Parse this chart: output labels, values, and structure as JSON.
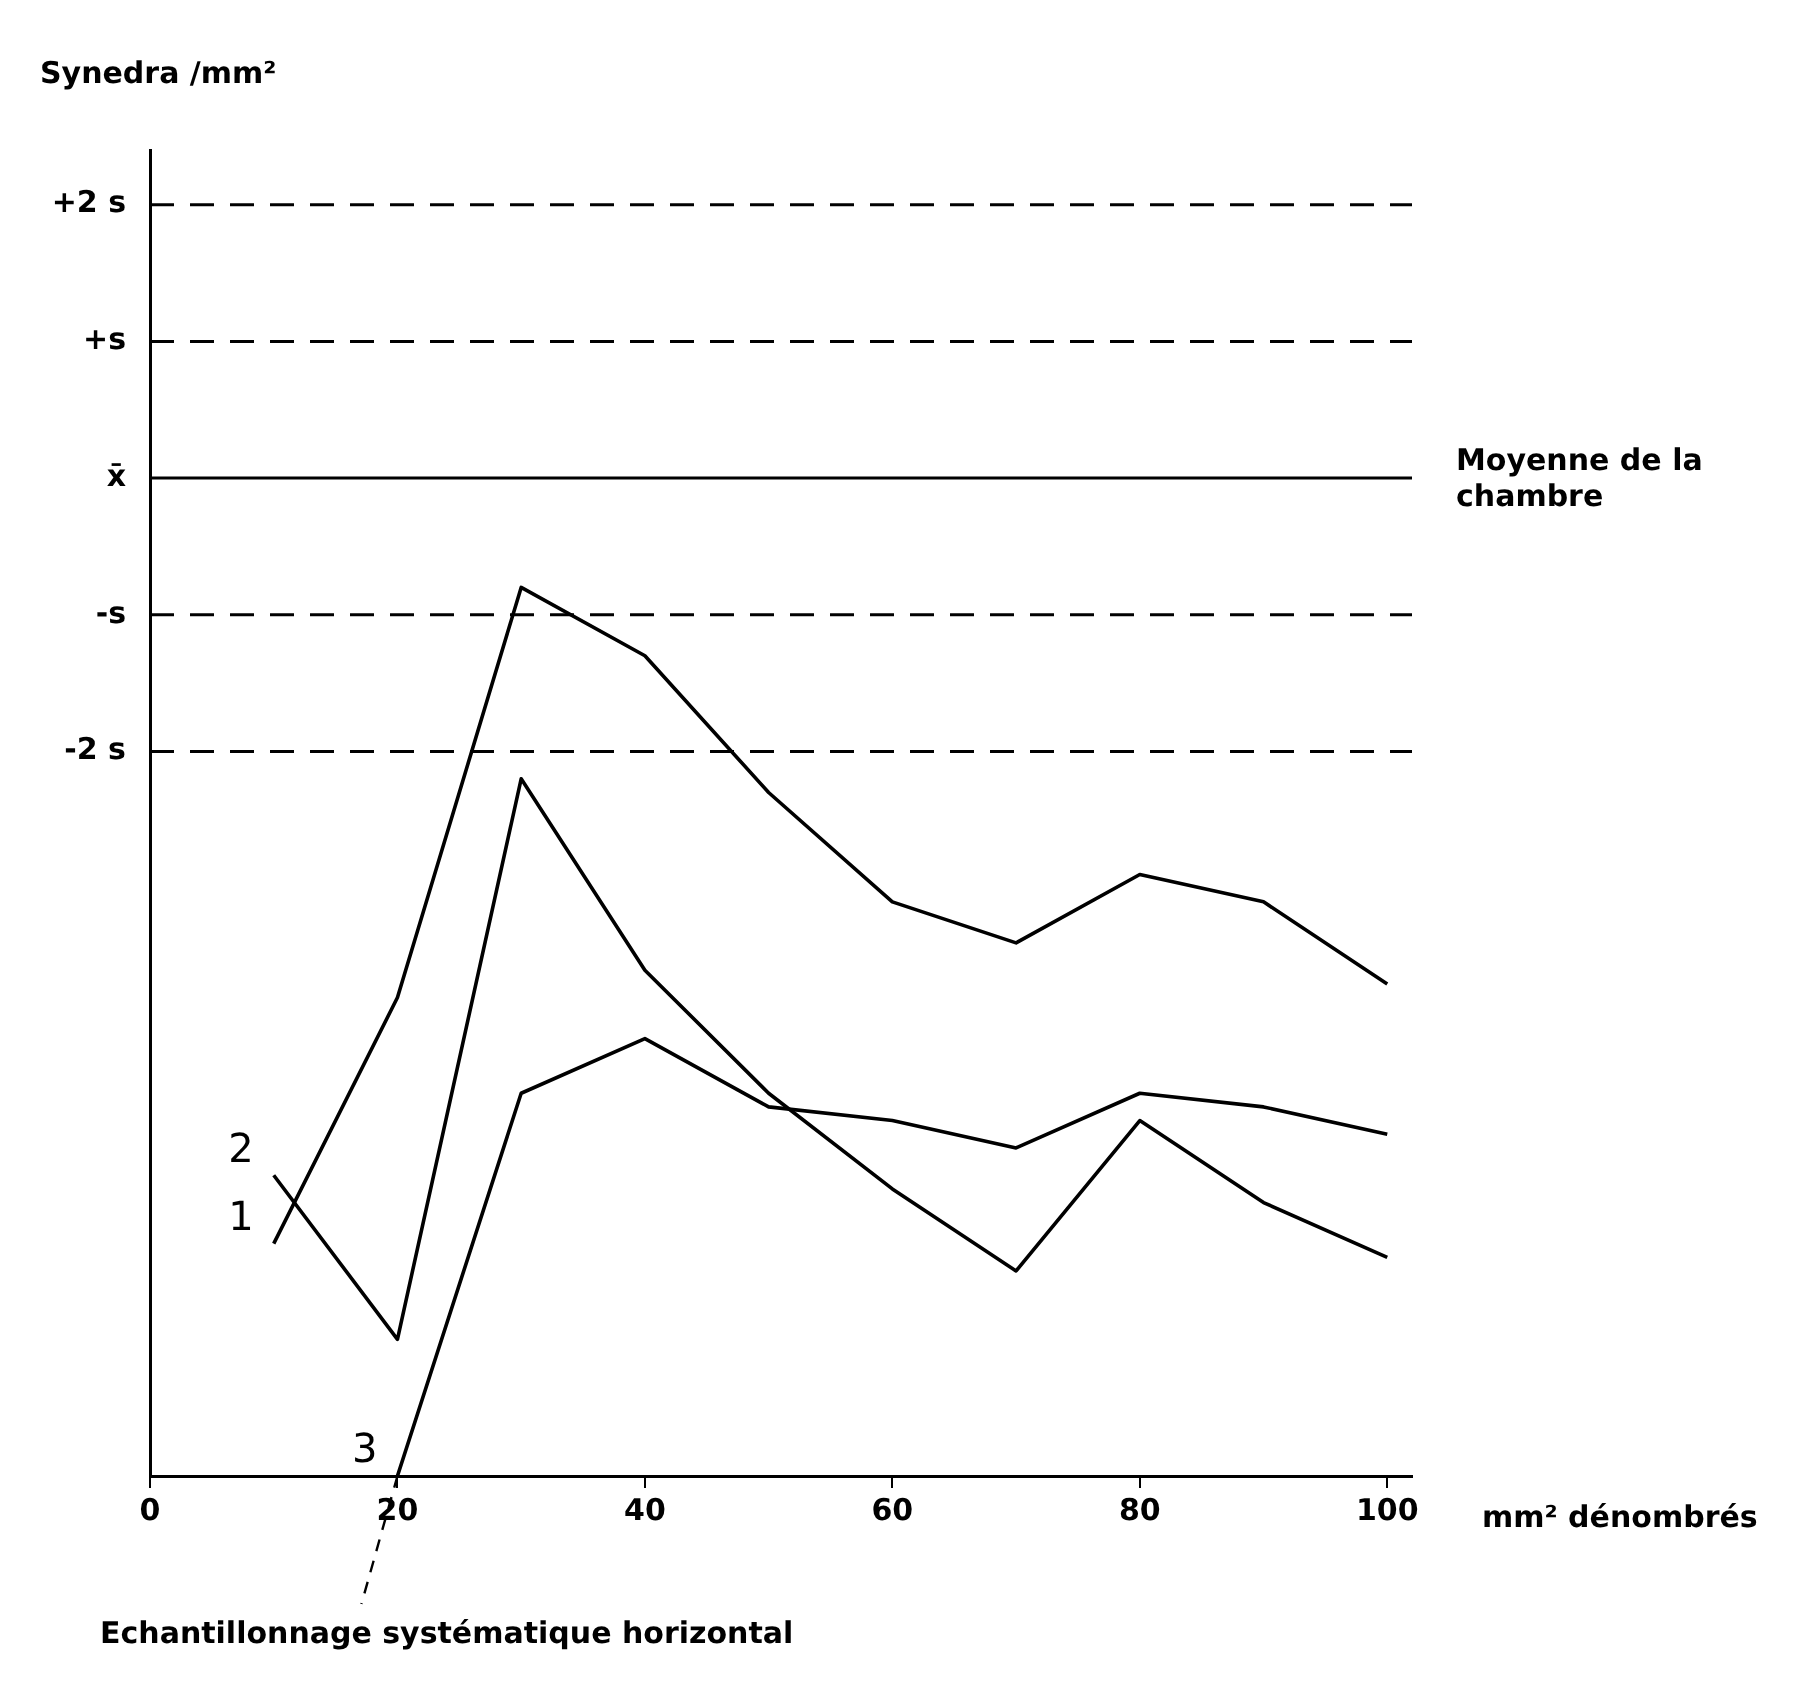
{
  "chart_data": {
    "type": "line",
    "ylabel": "Synedra /mm²",
    "xlabel": "mm² dénombrés",
    "x": [
      10,
      20,
      30,
      40,
      50,
      60,
      70,
      80,
      90,
      100
    ],
    "series": [
      {
        "name": "1",
        "color": "#000000",
        "values": [
          -5.6,
          -3.8,
          -0.8,
          -1.3,
          -2.3,
          -3.1,
          -3.4,
          -2.9,
          -3.1,
          -3.7
        ]
      },
      {
        "name": "2",
        "color": "#000000",
        "values": [
          -5.1,
          -6.3,
          -2.2,
          -3.6,
          -4.5,
          -5.2,
          -5.8,
          -4.7,
          -5.3,
          -5.7
        ]
      },
      {
        "name": "3",
        "color": "#000000",
        "x": [
          20,
          30,
          40,
          50,
          60,
          70,
          80,
          90,
          100
        ],
        "values": [
          -7.3,
          -4.5,
          -4.1,
          -4.6,
          -4.7,
          -4.9,
          -4.5,
          -4.6,
          -4.8
        ]
      }
    ],
    "xlim": [
      0,
      102
    ],
    "xticks": [
      0,
      20,
      40,
      60,
      80,
      100
    ],
    "ylim": [
      -7.3,
      2.4
    ],
    "yticks": [
      {
        "value": 2,
        "label": "+2 s"
      },
      {
        "value": 1,
        "label": "+s"
      },
      {
        "value": 0,
        "label": "x̄"
      },
      {
        "value": -1,
        "label": "-s"
      },
      {
        "value": -2,
        "label": "-2 s"
      }
    ],
    "ref_lines": [
      {
        "axis": "y",
        "value": 2,
        "line_style": "dashed"
      },
      {
        "axis": "y",
        "value": 1,
        "line_style": "dashed"
      },
      {
        "axis": "y",
        "value": 0,
        "label": "Moyenne de la chambre",
        "line_style": "solid"
      },
      {
        "axis": "y",
        "value": -1,
        "line_style": "dashed"
      },
      {
        "axis": "y",
        "value": -2,
        "line_style": "dashed"
      }
    ],
    "annotations": [
      {
        "text": "Echantillonnage systématique horizontal",
        "x": 20,
        "y": -7.3
      }
    ],
    "grid": false,
    "legend": false,
    "marker": "none",
    "line_style": "solid"
  }
}
